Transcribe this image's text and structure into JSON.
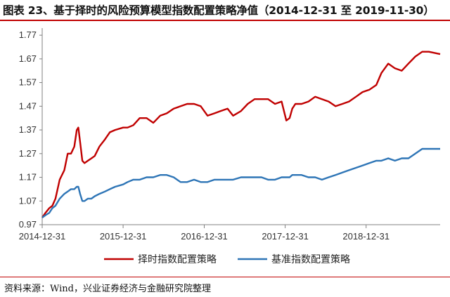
{
  "figure": {
    "title": "图表 23、基于择时的风险预算模型指数配置策略净值（2014-12-31 至 2019-11-30）",
    "source": "资料来源：Wind，兴业证券经济与金融研究院整理"
  },
  "colors": {
    "timing": "#c00000",
    "base": "#2e75b6",
    "rule": "#c00000",
    "axis": "#808080"
  },
  "chart_data": {
    "type": "line",
    "title": "",
    "xlabel": "",
    "ylabel": "",
    "x_tick_labels": [
      "2014-12-31",
      "2015-12-31",
      "2016-12-31",
      "2017-12-31",
      "2018-12-31"
    ],
    "y_tick_labels": [
      "0.97",
      "1.07",
      "1.17",
      "1.27",
      "1.37",
      "1.47",
      "1.57",
      "1.67",
      "1.77"
    ],
    "ylim": [
      0.97,
      1.8
    ],
    "xlim": [
      "2014-12-31",
      "2019-11-30"
    ],
    "grid": false,
    "legend_position": "bottom",
    "x": [
      "2014-12-31",
      "2015-01-15",
      "2015-02-01",
      "2015-02-15",
      "2015-03-01",
      "2015-03-20",
      "2015-04-10",
      "2015-04-25",
      "2015-05-10",
      "2015-05-25",
      "2015-06-05",
      "2015-06-12",
      "2015-06-20",
      "2015-06-30",
      "2015-07-10",
      "2015-07-25",
      "2015-08-10",
      "2015-08-25",
      "2015-09-15",
      "2015-10-10",
      "2015-11-01",
      "2015-11-25",
      "2015-12-31",
      "2016-01-20",
      "2016-02-15",
      "2016-03-15",
      "2016-04-15",
      "2016-05-15",
      "2016-06-15",
      "2016-07-15",
      "2016-08-15",
      "2016-09-15",
      "2016-10-15",
      "2016-11-15",
      "2016-12-15",
      "2017-01-15",
      "2017-02-15",
      "2017-03-15",
      "2017-04-15",
      "2017-05-10",
      "2017-06-15",
      "2017-07-15",
      "2017-08-15",
      "2017-09-15",
      "2017-10-15",
      "2017-11-15",
      "2017-12-15",
      "2018-01-05",
      "2018-01-20",
      "2018-02-01",
      "2018-02-15",
      "2018-03-15",
      "2018-04-15",
      "2018-05-15",
      "2018-06-15",
      "2018-07-15",
      "2018-08-15",
      "2018-09-15",
      "2018-10-15",
      "2018-11-15",
      "2018-12-15",
      "2019-01-15",
      "2019-02-15",
      "2019-03-10",
      "2019-04-10",
      "2019-05-10",
      "2019-06-10",
      "2019-07-10",
      "2019-08-10",
      "2019-09-10",
      "2019-10-10",
      "2019-11-30"
    ],
    "series": [
      {
        "name": "择时指数配置策略",
        "values": [
          1.0,
          1.02,
          1.04,
          1.05,
          1.08,
          1.16,
          1.2,
          1.27,
          1.27,
          1.3,
          1.37,
          1.38,
          1.32,
          1.24,
          1.23,
          1.24,
          1.25,
          1.26,
          1.3,
          1.33,
          1.36,
          1.37,
          1.38,
          1.38,
          1.39,
          1.42,
          1.42,
          1.4,
          1.43,
          1.44,
          1.46,
          1.47,
          1.48,
          1.48,
          1.47,
          1.43,
          1.44,
          1.45,
          1.46,
          1.43,
          1.45,
          1.48,
          1.5,
          1.5,
          1.5,
          1.48,
          1.49,
          1.41,
          1.42,
          1.46,
          1.48,
          1.48,
          1.49,
          1.51,
          1.5,
          1.49,
          1.47,
          1.48,
          1.49,
          1.51,
          1.53,
          1.54,
          1.56,
          1.61,
          1.65,
          1.63,
          1.62,
          1.65,
          1.68,
          1.7,
          1.7,
          1.69
        ]
      },
      {
        "name": "基准指数配置策略",
        "values": [
          1.0,
          1.01,
          1.02,
          1.04,
          1.05,
          1.08,
          1.1,
          1.11,
          1.12,
          1.12,
          1.13,
          1.13,
          1.1,
          1.07,
          1.07,
          1.08,
          1.08,
          1.09,
          1.1,
          1.11,
          1.12,
          1.13,
          1.14,
          1.15,
          1.16,
          1.16,
          1.17,
          1.17,
          1.18,
          1.18,
          1.17,
          1.15,
          1.15,
          1.16,
          1.15,
          1.15,
          1.16,
          1.16,
          1.16,
          1.16,
          1.17,
          1.17,
          1.17,
          1.17,
          1.16,
          1.16,
          1.17,
          1.17,
          1.17,
          1.18,
          1.18,
          1.18,
          1.17,
          1.17,
          1.16,
          1.17,
          1.18,
          1.19,
          1.2,
          1.21,
          1.22,
          1.23,
          1.24,
          1.24,
          1.25,
          1.24,
          1.25,
          1.25,
          1.27,
          1.29,
          1.29,
          1.29
        ]
      }
    ]
  }
}
